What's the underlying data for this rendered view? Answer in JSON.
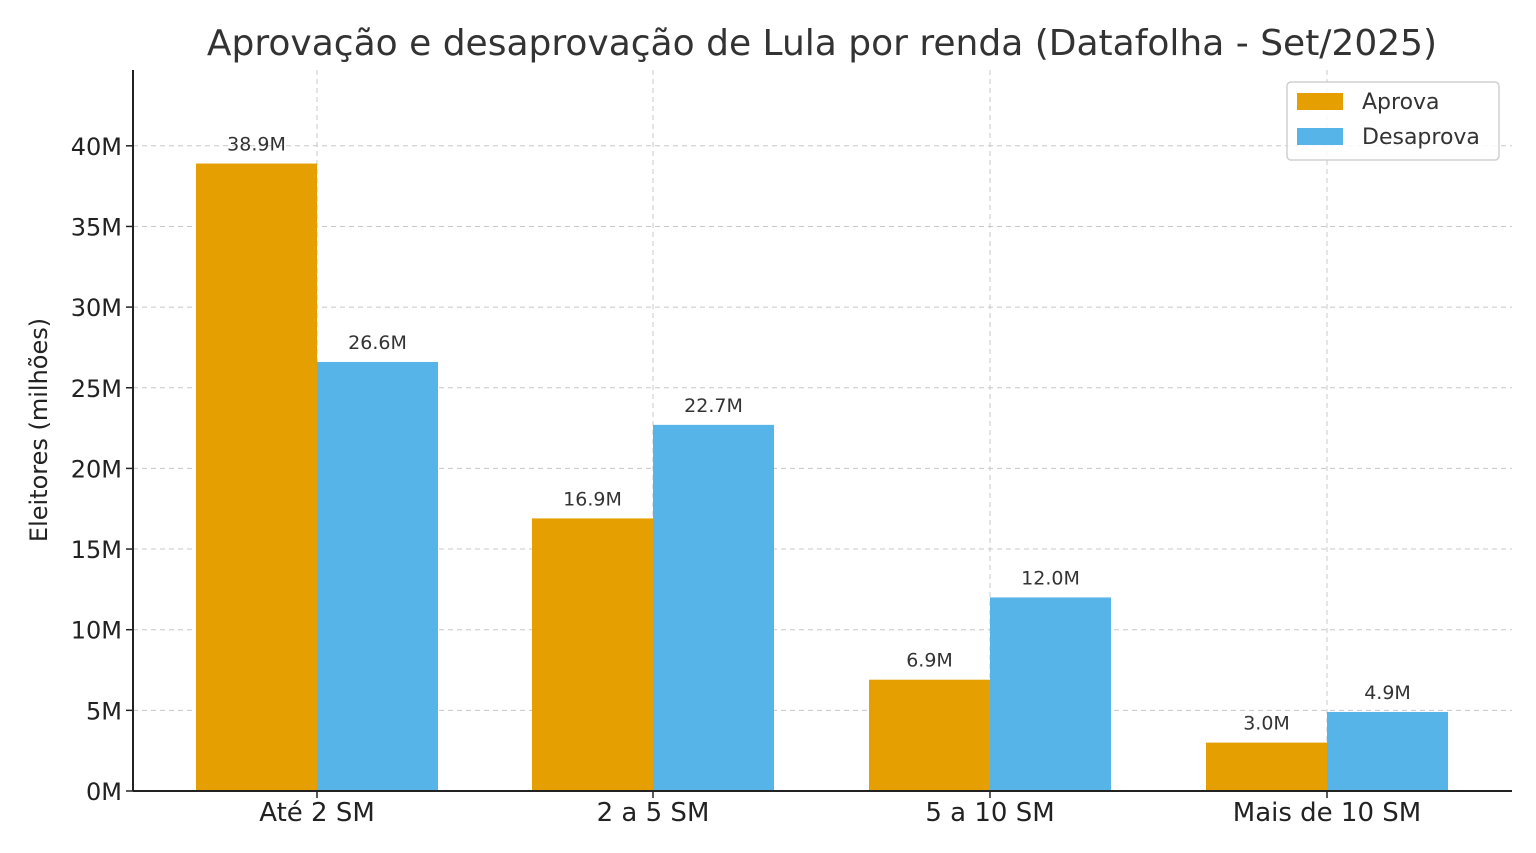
{
  "chart_data": {
    "type": "bar",
    "title": "Aprovação e desaprovação de Lula por renda (Datafolha - Set/2025)",
    "xlabel": "",
    "ylabel": "Eleitores (milhões)",
    "categories": [
      "Até 2 SM",
      "2 a 5 SM",
      "5 a 10 SM",
      "Mais de 10 SM"
    ],
    "series": [
      {
        "name": "Aprova",
        "color": "#E69F00",
        "values": [
          38.9,
          16.9,
          6.9,
          3.0
        ],
        "labels": [
          "38.9M",
          "16.9M",
          "6.9M",
          "3.0M"
        ]
      },
      {
        "name": "Desaprova",
        "color": "#56B4E9",
        "values": [
          26.6,
          22.7,
          12.0,
          4.9
        ],
        "labels": [
          "26.6M",
          "22.7M",
          "12.0M",
          "4.9M"
        ]
      }
    ],
    "ylim": [
      0,
      44.7
    ],
    "yticks": [
      0,
      5,
      10,
      15,
      20,
      25,
      30,
      35,
      40
    ],
    "ytick_labels": [
      "0M",
      "5M",
      "10M",
      "15M",
      "20M",
      "25M",
      "30M",
      "35M",
      "40M"
    ],
    "grid": true,
    "legend_position": "top-right"
  }
}
